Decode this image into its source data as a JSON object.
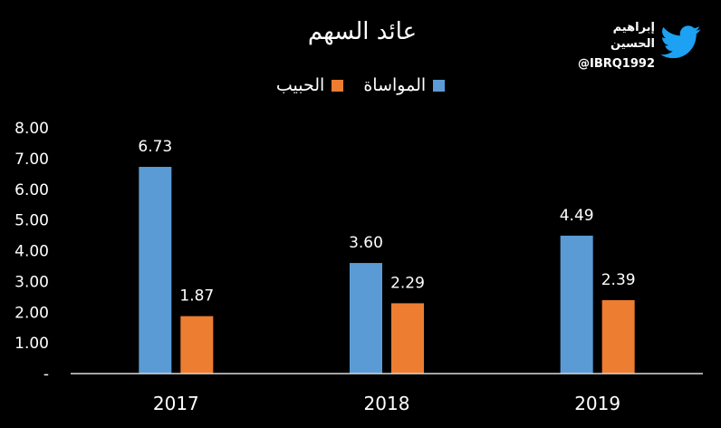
{
  "chart_data": {
    "type": "bar",
    "title": "عائد السهم",
    "categories": [
      "2017",
      "2018",
      "2019"
    ],
    "series": [
      {
        "name": "المواساة",
        "values": [
          6.73,
          3.6,
          4.49
        ],
        "color": "#5b9bd5"
      },
      {
        "name": "الحبيب",
        "values": [
          1.87,
          2.29,
          2.39
        ],
        "color": "#ed7d31"
      }
    ],
    "data_labels": [
      [
        "6.73",
        "3.60",
        "4.49"
      ],
      [
        "1.87",
        "2.29",
        "2.39"
      ]
    ],
    "yticks": [
      "-",
      "1.00",
      "2.00",
      "3.00",
      "4.00",
      "5.00",
      "6.00",
      "7.00",
      "8.00"
    ],
    "ylim": [
      0,
      8
    ],
    "grid": false,
    "legend_position": "top-center"
  },
  "brand": {
    "name": "إبراهيم الحسين",
    "handle": "@IBRQ1992",
    "icon": "twitter-bird-icon",
    "icon_color": "#1da1f2"
  }
}
